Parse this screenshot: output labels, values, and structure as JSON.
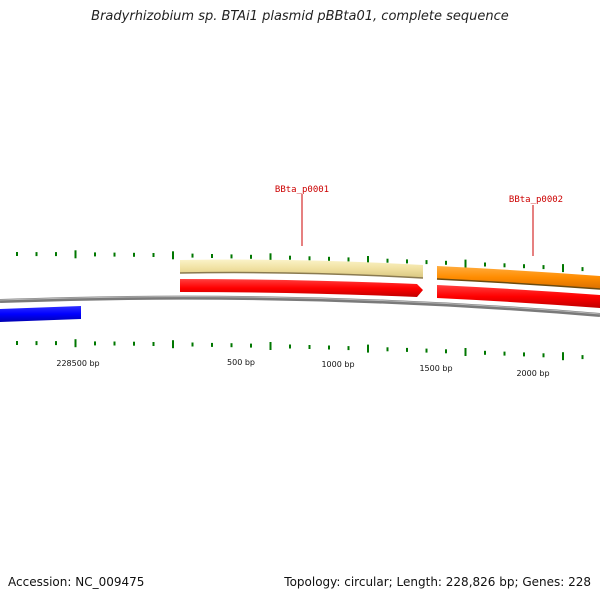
{
  "title": "Bradyrhizobium sp. BTAi1 plasmid pBBta01, complete sequence",
  "footer": {
    "accession": "Accession: NC_009475",
    "summary": "Topology: circular; Length: 228,826 bp; Genes: 228"
  },
  "scale_labels": [
    "228500 bp",
    "500 bp",
    "1000 bp",
    "1500 bp",
    "2000 bp"
  ],
  "genes": [
    {
      "label": "BBta_p0001"
    },
    {
      "label": "BBta_p0002"
    }
  ],
  "colors": {
    "backbone": "#888888",
    "cds_forward": "#ff0000",
    "gene_pale": "#f0e0a0",
    "gene_orange": "#ff8c00",
    "reverse_feature": "#0000ff",
    "ticks": "#007700",
    "labels": "#cc0000"
  }
}
